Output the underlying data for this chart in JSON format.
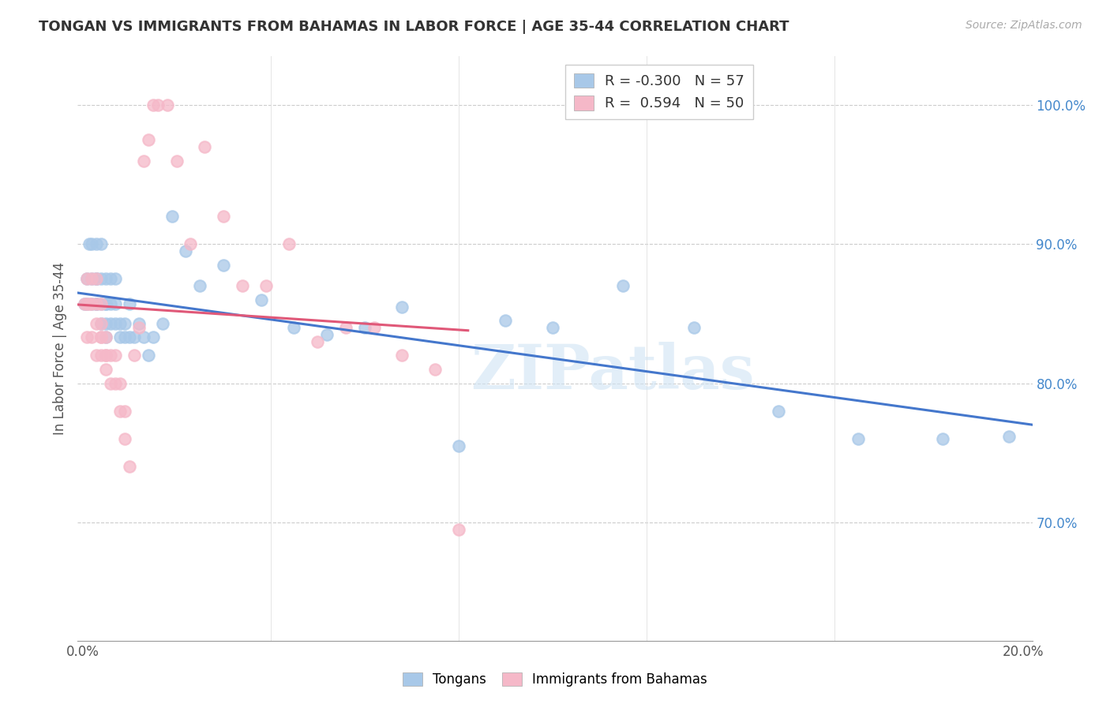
{
  "title": "TONGAN VS IMMIGRANTS FROM BAHAMAS IN LABOR FORCE | AGE 35-44 CORRELATION CHART",
  "source": "Source: ZipAtlas.com",
  "ylabel": "In Labor Force | Age 35-44",
  "blue_R": "-0.300",
  "blue_N": "57",
  "pink_R": "0.594",
  "pink_N": "50",
  "blue_color": "#a8c8e8",
  "pink_color": "#f5b8c8",
  "blue_line_color": "#4477cc",
  "pink_line_color": "#e05878",
  "watermark": "ZIPatlas",
  "xlim": [
    -0.001,
    0.202
  ],
  "ylim": [
    0.615,
    1.035
  ],
  "tongans_x": [
    0.0005,
    0.001,
    0.001,
    0.0015,
    0.002,
    0.002,
    0.002,
    0.003,
    0.003,
    0.003,
    0.003,
    0.003,
    0.004,
    0.004,
    0.004,
    0.004,
    0.005,
    0.005,
    0.005,
    0.005,
    0.005,
    0.006,
    0.006,
    0.006,
    0.007,
    0.007,
    0.007,
    0.008,
    0.008,
    0.009,
    0.009,
    0.01,
    0.01,
    0.011,
    0.012,
    0.013,
    0.014,
    0.015,
    0.017,
    0.019,
    0.022,
    0.025,
    0.03,
    0.038,
    0.045,
    0.052,
    0.06,
    0.068,
    0.08,
    0.09,
    0.1,
    0.115,
    0.13,
    0.148,
    0.165,
    0.183,
    0.197
  ],
  "tongans_y": [
    0.857,
    0.857,
    0.875,
    0.9,
    0.857,
    0.875,
    0.9,
    0.857,
    0.875,
    0.857,
    0.875,
    0.9,
    0.843,
    0.857,
    0.875,
    0.9,
    0.843,
    0.857,
    0.875,
    0.833,
    0.857,
    0.843,
    0.857,
    0.875,
    0.843,
    0.857,
    0.875,
    0.833,
    0.843,
    0.833,
    0.843,
    0.833,
    0.857,
    0.833,
    0.843,
    0.833,
    0.82,
    0.833,
    0.843,
    0.92,
    0.895,
    0.87,
    0.885,
    0.86,
    0.84,
    0.835,
    0.84,
    0.855,
    0.755,
    0.845,
    0.84,
    0.87,
    0.84,
    0.78,
    0.76,
    0.76,
    0.762
  ],
  "bahamas_x": [
    0.0005,
    0.001,
    0.001,
    0.001,
    0.0015,
    0.002,
    0.002,
    0.002,
    0.003,
    0.003,
    0.003,
    0.003,
    0.004,
    0.004,
    0.004,
    0.004,
    0.004,
    0.005,
    0.005,
    0.005,
    0.005,
    0.006,
    0.006,
    0.007,
    0.007,
    0.008,
    0.008,
    0.009,
    0.009,
    0.01,
    0.011,
    0.012,
    0.013,
    0.014,
    0.015,
    0.016,
    0.018,
    0.02,
    0.023,
    0.026,
    0.03,
    0.034,
    0.039,
    0.044,
    0.05,
    0.056,
    0.062,
    0.068,
    0.075,
    0.08
  ],
  "bahamas_y": [
    0.857,
    0.875,
    0.857,
    0.833,
    0.857,
    0.875,
    0.857,
    0.833,
    0.857,
    0.875,
    0.843,
    0.82,
    0.833,
    0.843,
    0.82,
    0.833,
    0.857,
    0.82,
    0.833,
    0.81,
    0.82,
    0.8,
    0.82,
    0.8,
    0.82,
    0.78,
    0.8,
    0.76,
    0.78,
    0.74,
    0.82,
    0.84,
    0.96,
    0.975,
    1.0,
    1.0,
    1.0,
    0.96,
    0.9,
    0.97,
    0.92,
    0.87,
    0.87,
    0.9,
    0.83,
    0.84,
    0.84,
    0.82,
    0.81,
    0.695
  ]
}
